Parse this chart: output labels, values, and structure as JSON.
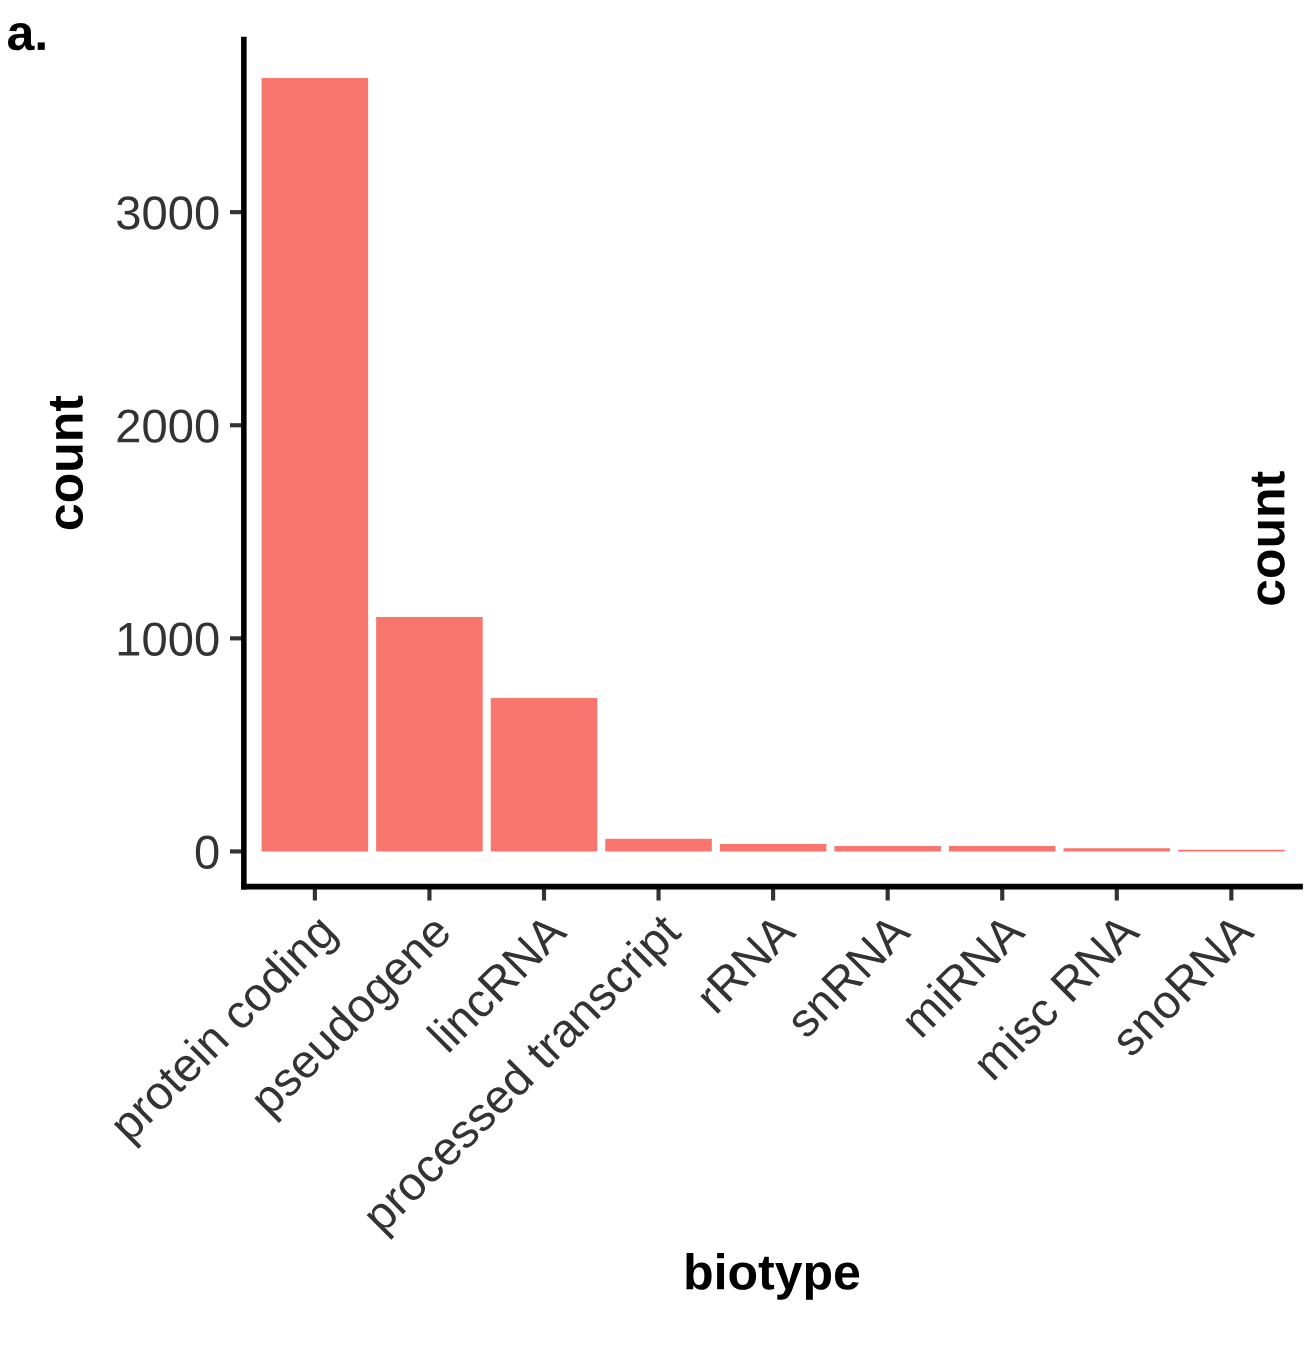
{
  "chart_data": {
    "type": "bar",
    "xlabel": "biotype",
    "ylabel": "count",
    "categories": [
      "protein coding",
      "pseudogene",
      "lincRNA",
      "processed transcript",
      "rRNA",
      "snRNA",
      "miRNA",
      "misc RNA",
      "snoRNA"
    ],
    "values": [
      3630,
      1100,
      720,
      60,
      35,
      25,
      25,
      15,
      8
    ],
    "color": "#f8766d",
    "ylim": [
      -165,
      3810
    ],
    "yticks": [
      0,
      1000,
      2000,
      3000
    ],
    "grid": false,
    "legend_title": "count",
    "annotations": [
      "a."
    ]
  }
}
